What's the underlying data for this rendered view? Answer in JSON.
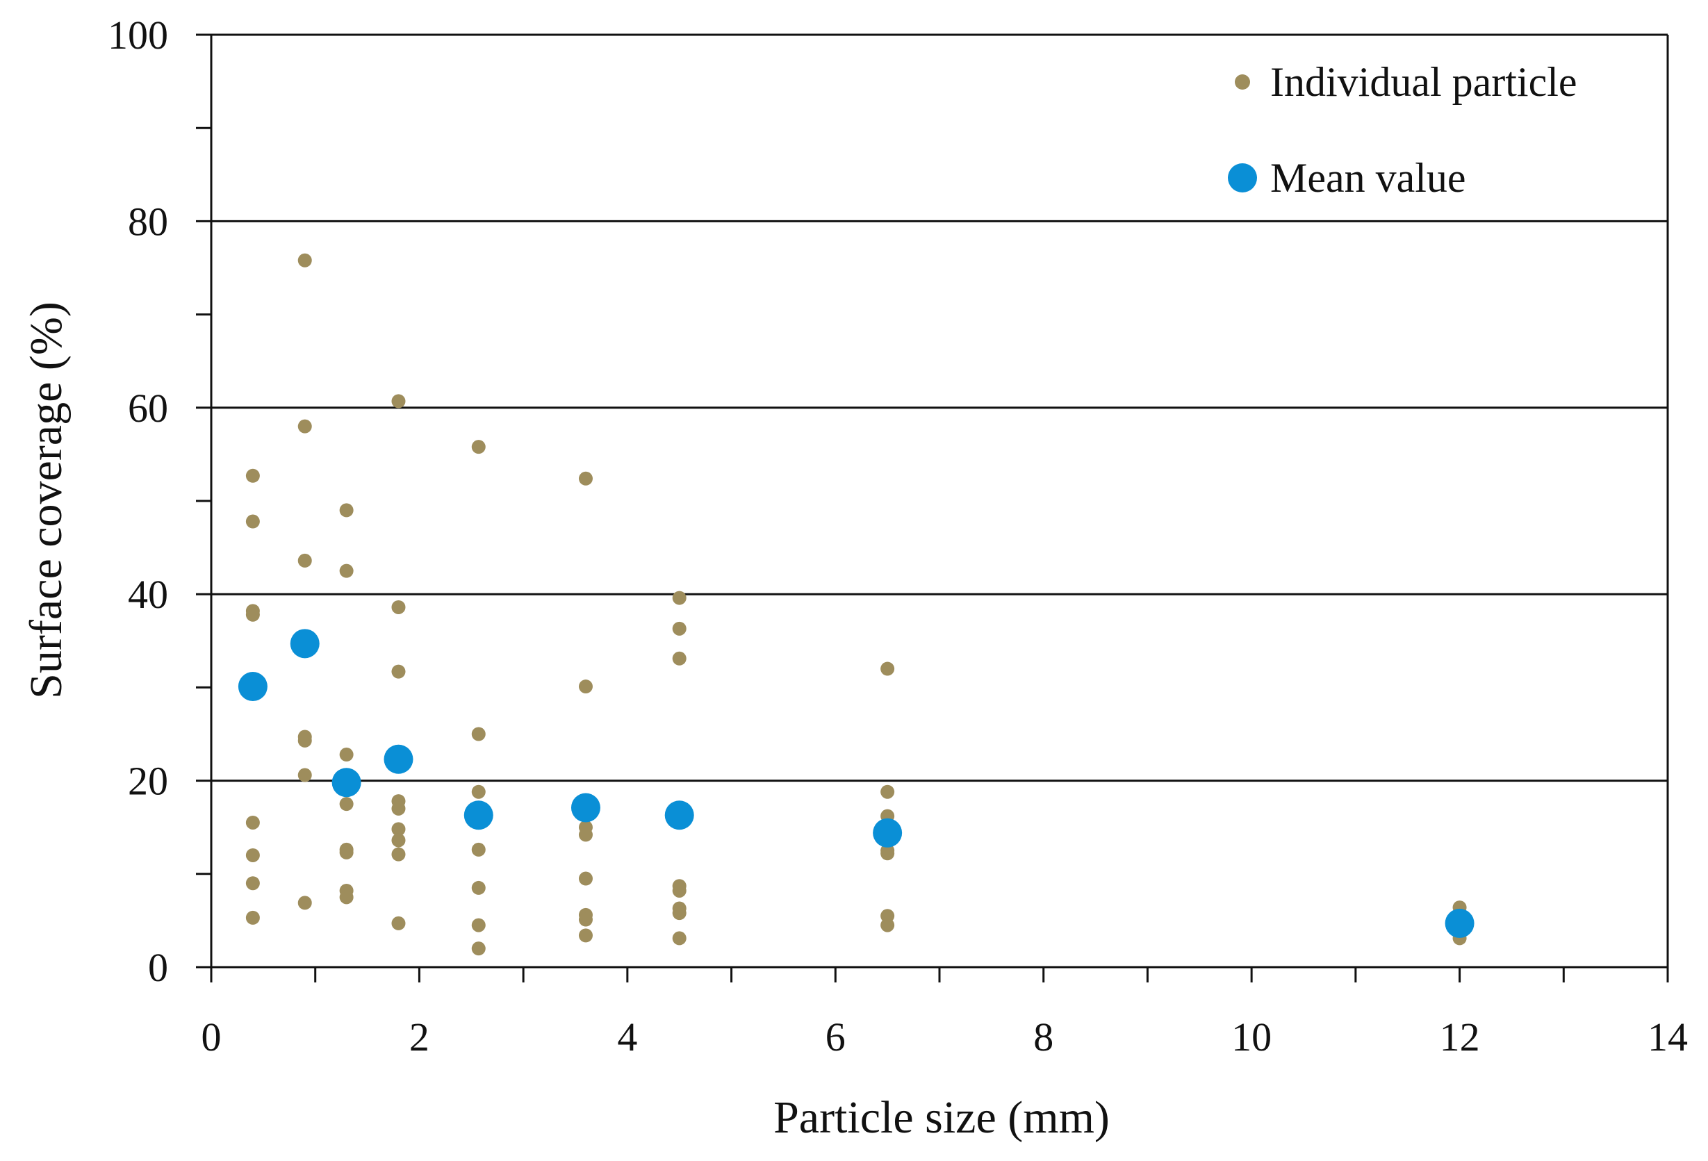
{
  "chart_data": {
    "type": "scatter",
    "title": "",
    "xlabel": "Particle size (mm)",
    "ylabel": "Surface coverage (%)",
    "xlim": [
      0,
      14
    ],
    "ylim": [
      0,
      100
    ],
    "x_ticks": [
      0,
      2,
      4,
      6,
      8,
      10,
      12,
      14
    ],
    "y_ticks": [
      0,
      20,
      40,
      60,
      80,
      100
    ],
    "x_minor_step": 1,
    "y_minor_step": 10,
    "gridlines": "horizontal-major",
    "legend_position": "top-right",
    "colors": {
      "individual": "#9e8d5c",
      "mean": "#0a8fd6",
      "axis": "#111111",
      "grid": "#111111"
    },
    "series": [
      {
        "name": "Individual particle",
        "marker": "small-dot",
        "points": [
          [
            0.4,
            52.7
          ],
          [
            0.4,
            47.8
          ],
          [
            0.4,
            38.2
          ],
          [
            0.4,
            37.8
          ],
          [
            0.4,
            15.5
          ],
          [
            0.4,
            12.0
          ],
          [
            0.4,
            9.0
          ],
          [
            0.4,
            5.3
          ],
          [
            0.9,
            75.8
          ],
          [
            0.9,
            58.0
          ],
          [
            0.9,
            43.6
          ],
          [
            0.9,
            35.2
          ],
          [
            0.9,
            34.2
          ],
          [
            0.9,
            24.7
          ],
          [
            0.9,
            24.3
          ],
          [
            0.9,
            20.6
          ],
          [
            0.9,
            6.9
          ],
          [
            1.3,
            49.0
          ],
          [
            1.3,
            42.5
          ],
          [
            1.3,
            22.8
          ],
          [
            1.3,
            20.3
          ],
          [
            1.3,
            17.5
          ],
          [
            1.3,
            12.6
          ],
          [
            1.3,
            12.3
          ],
          [
            1.3,
            8.2
          ],
          [
            1.3,
            7.5
          ],
          [
            1.8,
            60.7
          ],
          [
            1.8,
            38.6
          ],
          [
            1.8,
            31.7
          ],
          [
            1.8,
            17.8
          ],
          [
            1.8,
            17.0
          ],
          [
            1.8,
            14.8
          ],
          [
            1.8,
            13.6
          ],
          [
            1.8,
            12.1
          ],
          [
            1.8,
            4.7
          ],
          [
            2.57,
            55.8
          ],
          [
            2.57,
            25.0
          ],
          [
            2.57,
            18.8
          ],
          [
            2.57,
            12.6
          ],
          [
            2.57,
            8.5
          ],
          [
            2.57,
            4.5
          ],
          [
            2.57,
            2.0
          ],
          [
            3.6,
            52.4
          ],
          [
            3.6,
            30.1
          ],
          [
            3.6,
            15.0
          ],
          [
            3.6,
            14.2
          ],
          [
            3.6,
            9.5
          ],
          [
            3.6,
            5.6
          ],
          [
            3.6,
            5.1
          ],
          [
            3.6,
            3.4
          ],
          [
            4.5,
            39.6
          ],
          [
            4.5,
            36.3
          ],
          [
            4.5,
            33.1
          ],
          [
            4.5,
            8.7
          ],
          [
            4.5,
            8.2
          ],
          [
            4.5,
            6.3
          ],
          [
            4.5,
            5.8
          ],
          [
            4.5,
            3.1
          ],
          [
            6.5,
            32.0
          ],
          [
            6.5,
            18.8
          ],
          [
            6.5,
            16.2
          ],
          [
            6.5,
            12.5
          ],
          [
            6.5,
            12.2
          ],
          [
            6.5,
            5.5
          ],
          [
            6.5,
            4.5
          ],
          [
            12.0,
            6.4
          ],
          [
            12.0,
            5.6
          ],
          [
            12.0,
            3.6
          ],
          [
            12.0,
            3.1
          ]
        ]
      },
      {
        "name": "Mean value",
        "marker": "large-dot",
        "points": [
          [
            0.4,
            30.1
          ],
          [
            0.9,
            34.7
          ],
          [
            1.3,
            19.8
          ],
          [
            1.8,
            22.3
          ],
          [
            2.57,
            16.3
          ],
          [
            3.6,
            17.1
          ],
          [
            4.5,
            16.3
          ],
          [
            6.5,
            14.4
          ],
          [
            12.0,
            4.7
          ]
        ]
      }
    ]
  }
}
